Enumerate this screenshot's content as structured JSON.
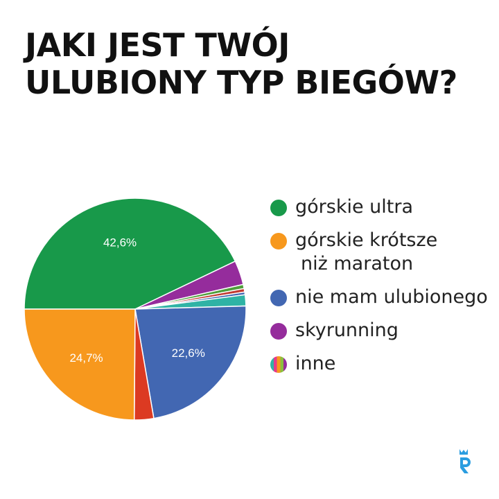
{
  "title": {
    "line1": "JAKI JEST TWÓJ",
    "line2": "ULUBIONY TYP BIEGÓW?"
  },
  "legend": [
    {
      "label": "górskie ultra",
      "label2": "",
      "color": "#18994a"
    },
    {
      "label": "górskie krótsze",
      "label2": "niż maraton",
      "color": "#f7981d"
    },
    {
      "label": "nie mam ulubionego",
      "label2": "",
      "color": "#4267b2"
    },
    {
      "label": "skyrunning",
      "label2": "",
      "color": "#952c9c"
    },
    {
      "label": "inne",
      "label2": "",
      "color": "multicolor"
    }
  ],
  "chart_data": {
    "type": "pie",
    "title": "JAKI JEST TWÓJ ULUBIONY TYP BIEGÓW?",
    "categories": [
      "górskie ultra",
      "",
      "",
      "",
      "",
      "",
      "nie mam ulubionego",
      "",
      "górskie krótsze niż maraton"
    ],
    "values": [
      42.6,
      3.5,
      0.6,
      0.5,
      0.4,
      1.6,
      22.6,
      2.8,
      24.7
    ],
    "colors": [
      "#18994a",
      "#952c9c",
      "#4f9e3a",
      "#c33a32",
      "#4267b2",
      "#2fb3a5",
      "#4267b2",
      "#dc3a22",
      "#f7981d"
    ],
    "data_labels": [
      "42,6%",
      "",
      "",
      "",
      "",
      "",
      "22,6%",
      "",
      "24,7%"
    ],
    "legend_position": "right"
  }
}
